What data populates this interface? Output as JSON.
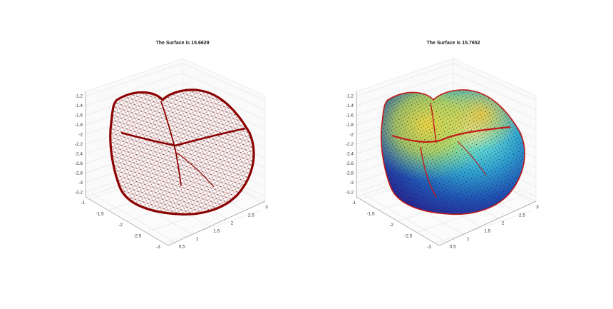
{
  "chart_data": [
    {
      "type": "surface-3d",
      "render": "wireframe",
      "title": "The Surface is 15.6629",
      "z_ticks": [
        "-1.2",
        "-1.4",
        "-1.6",
        "-1.8",
        "-2",
        "-2.2",
        "-2.4",
        "-2.6",
        "-2.8",
        "-3",
        "-3.2"
      ],
      "y_ticks": [
        "-1",
        "-1.5",
        "-2",
        "-2.5",
        "-3"
      ],
      "x_ticks": [
        "0.5",
        "1",
        "1.5",
        "2",
        "2.5",
        "3"
      ],
      "zlim": [
        -3.3,
        -1.1
      ],
      "ylim": [
        -3.1,
        -0.9
      ],
      "xlim": [
        0.3,
        3.1
      ],
      "surface_color": "#ffffff",
      "mesh_color": "#8b0000",
      "vertex_color": "#000000",
      "grid": true
    },
    {
      "type": "surface-3d",
      "render": "colored",
      "title": "The Surface is 15.7652",
      "z_ticks": [
        "-1.2",
        "-1.4",
        "-1.6",
        "-1.8",
        "-2",
        "-2.2",
        "-2.4",
        "-2.6",
        "-2.8",
        "-3",
        "-3.2"
      ],
      "y_ticks": [
        "-1",
        "-1.5",
        "-2",
        "-2.5",
        "-3"
      ],
      "x_ticks": [
        "0.5",
        "1",
        "1.5",
        "2",
        "2.5",
        "3"
      ],
      "zlim": [
        -3.3,
        -1.1
      ],
      "ylim": [
        -3.1,
        -0.9
      ],
      "xlim": [
        0.3,
        3.1
      ],
      "colormap": [
        "#2c2a9c",
        "#1f78c8",
        "#36c8c8",
        "#b7e24a",
        "#f2d43a",
        "#d9a62a"
      ],
      "mesh_color": "#c01818",
      "vertex_color": "#000000",
      "grid": true
    }
  ]
}
